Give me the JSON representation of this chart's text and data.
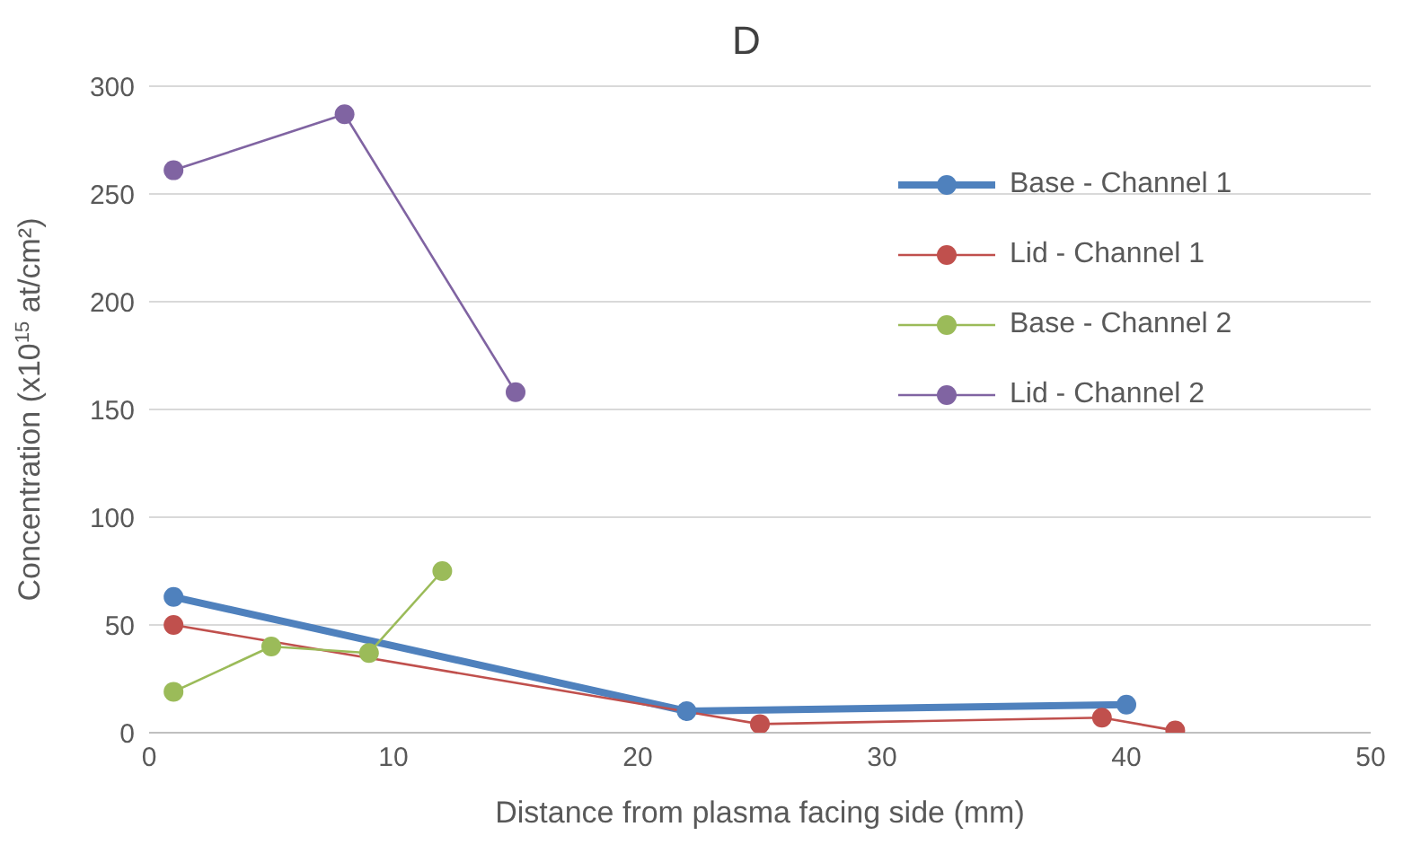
{
  "chart_data": {
    "type": "line",
    "title": "D",
    "xlabel": "Distance from plasma facing side (mm)",
    "ylabel": "Concentration (x10$^{15}$ at/cm²)",
    "xlim": [
      0,
      50
    ],
    "xticks": [
      0,
      10,
      20,
      30,
      40,
      50
    ],
    "ylim": [
      0,
      300
    ],
    "yticks": [
      0,
      50,
      100,
      150,
      200,
      250,
      300
    ],
    "grid": "y",
    "legend": "top right",
    "marker": "circle",
    "line_style": "solid",
    "series": [
      {
        "name": "Base - Channel 1",
        "color": "#4f81bd",
        "x": [
          1,
          22,
          40
        ],
        "values": [
          63,
          10,
          13
        ]
      },
      {
        "name": "Lid - Channel 1",
        "color": "#c0504d",
        "x": [
          1,
          25,
          39,
          42
        ],
        "values": [
          50,
          4,
          7,
          1
        ]
      },
      {
        "name": "Base - Channel 2",
        "color": "#9bbb59",
        "x": [
          1,
          5,
          9,
          12
        ],
        "values": [
          19,
          40,
          37,
          75
        ]
      },
      {
        "name": "Lid - Channel 2",
        "color": "#8064a2",
        "x": [
          1,
          8,
          15
        ],
        "values": [
          261,
          287,
          158
        ]
      }
    ]
  }
}
